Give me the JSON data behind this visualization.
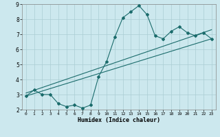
{
  "title": "",
  "xlabel": "Humidex (Indice chaleur)",
  "ylabel": "",
  "bg_color": "#cce8ee",
  "line_color": "#1a6b6b",
  "grid_color": "#aacdd4",
  "xlim": [
    -0.5,
    23.5
  ],
  "ylim": [
    2,
    9
  ],
  "xticks": [
    0,
    1,
    2,
    3,
    4,
    5,
    6,
    7,
    8,
    9,
    10,
    11,
    12,
    13,
    14,
    15,
    16,
    17,
    18,
    19,
    20,
    21,
    22,
    23
  ],
  "yticks": [
    2,
    3,
    4,
    5,
    6,
    7,
    8,
    9
  ],
  "curve1_x": [
    0,
    1,
    2,
    3,
    4,
    5,
    6,
    7,
    8,
    9,
    10,
    11,
    12,
    13,
    14,
    15,
    16,
    17,
    18,
    19,
    20,
    21,
    22,
    23
  ],
  "curve1_y": [
    2.9,
    3.3,
    3.0,
    3.0,
    2.4,
    2.2,
    2.3,
    2.1,
    2.3,
    4.2,
    5.2,
    6.8,
    8.1,
    8.5,
    8.9,
    8.3,
    6.9,
    6.7,
    7.2,
    7.5,
    7.1,
    6.9,
    7.1,
    6.7
  ],
  "curve2_x": [
    0,
    23
  ],
  "curve2_y": [
    2.9,
    6.7
  ],
  "curve3_x": [
    0,
    23
  ],
  "curve3_y": [
    3.1,
    7.3
  ],
  "marker": "D",
  "markersize": 2.0,
  "linewidth": 0.8
}
